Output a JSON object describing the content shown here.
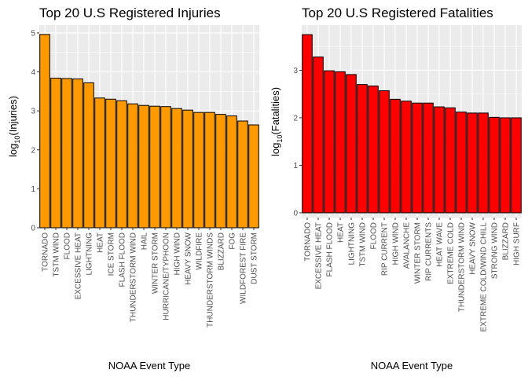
{
  "chart_data": [
    {
      "type": "bar",
      "title": "Top 20 U.S Registered Injuries",
      "xlabel": "NOAA Event Type",
      "ylabel_base": "log",
      "ylabel_sub": "10",
      "ylabel_rest": "(Injuries)",
      "ylim": [
        0,
        5.2
      ],
      "yticks": [
        0,
        1,
        2,
        3,
        4,
        5
      ],
      "grid": true,
      "bar_color": "#FF9900",
      "categories": [
        "TORNADO",
        "TSTM WIND",
        "FLOOD",
        "EXCESSIVE HEAT",
        "LIGHTNING",
        "HEAT",
        "ICE STORM",
        "FLASH FLOOD",
        "THUNDERSTORM WIND",
        "HAIL",
        "WINTER STORM",
        "HURRICANE/TYPHOON",
        "HIGH WIND",
        "HEAVY SNOW",
        "WILDFIRE",
        "THUNDERSTORM WINDS",
        "BLIZZARD",
        "FOG",
        "WILDFOREST FIRE",
        "DUST STORM"
      ],
      "values": [
        4.96,
        3.84,
        3.83,
        3.82,
        3.72,
        3.33,
        3.3,
        3.26,
        3.18,
        3.14,
        3.12,
        3.11,
        3.06,
        3.02,
        2.96,
        2.96,
        2.91,
        2.87,
        2.74,
        2.64
      ]
    },
    {
      "type": "bar",
      "title": "Top 20 U.S Registered Fatalities",
      "xlabel": "NOAA Event Type",
      "ylabel_base": "log",
      "ylabel_sub": "10",
      "ylabel_rest": "(Fatalities)",
      "ylim": [
        -0.1,
        3.95
      ],
      "yticks": [
        0,
        1,
        2,
        3
      ],
      "grid": true,
      "bar_color": "#FF0000",
      "categories": [
        "TORNADO",
        "EXCESSIVE HEAT",
        "FLASH FLOOD",
        "HEAT",
        "LIGHTNING",
        "TSTM WIND",
        "FLOOD",
        "RIP CURRENT",
        "HIGH WIND",
        "AVALANCHE",
        "WINTER STORM",
        "RIP CURRENTS",
        "HEAT WAVE",
        "EXTREME COLD",
        "THUNDERSTORM WIND",
        "HEAVY SNOW",
        "EXTREME COLD/WIND CHILL",
        "STRONG WIND",
        "BLIZZARD",
        "HIGH SURF"
      ],
      "values": [
        3.75,
        3.28,
        2.99,
        2.97,
        2.91,
        2.7,
        2.67,
        2.57,
        2.39,
        2.35,
        2.31,
        2.31,
        2.23,
        2.21,
        2.12,
        2.1,
        2.1,
        2.01,
        2.0,
        2.0
      ]
    }
  ]
}
